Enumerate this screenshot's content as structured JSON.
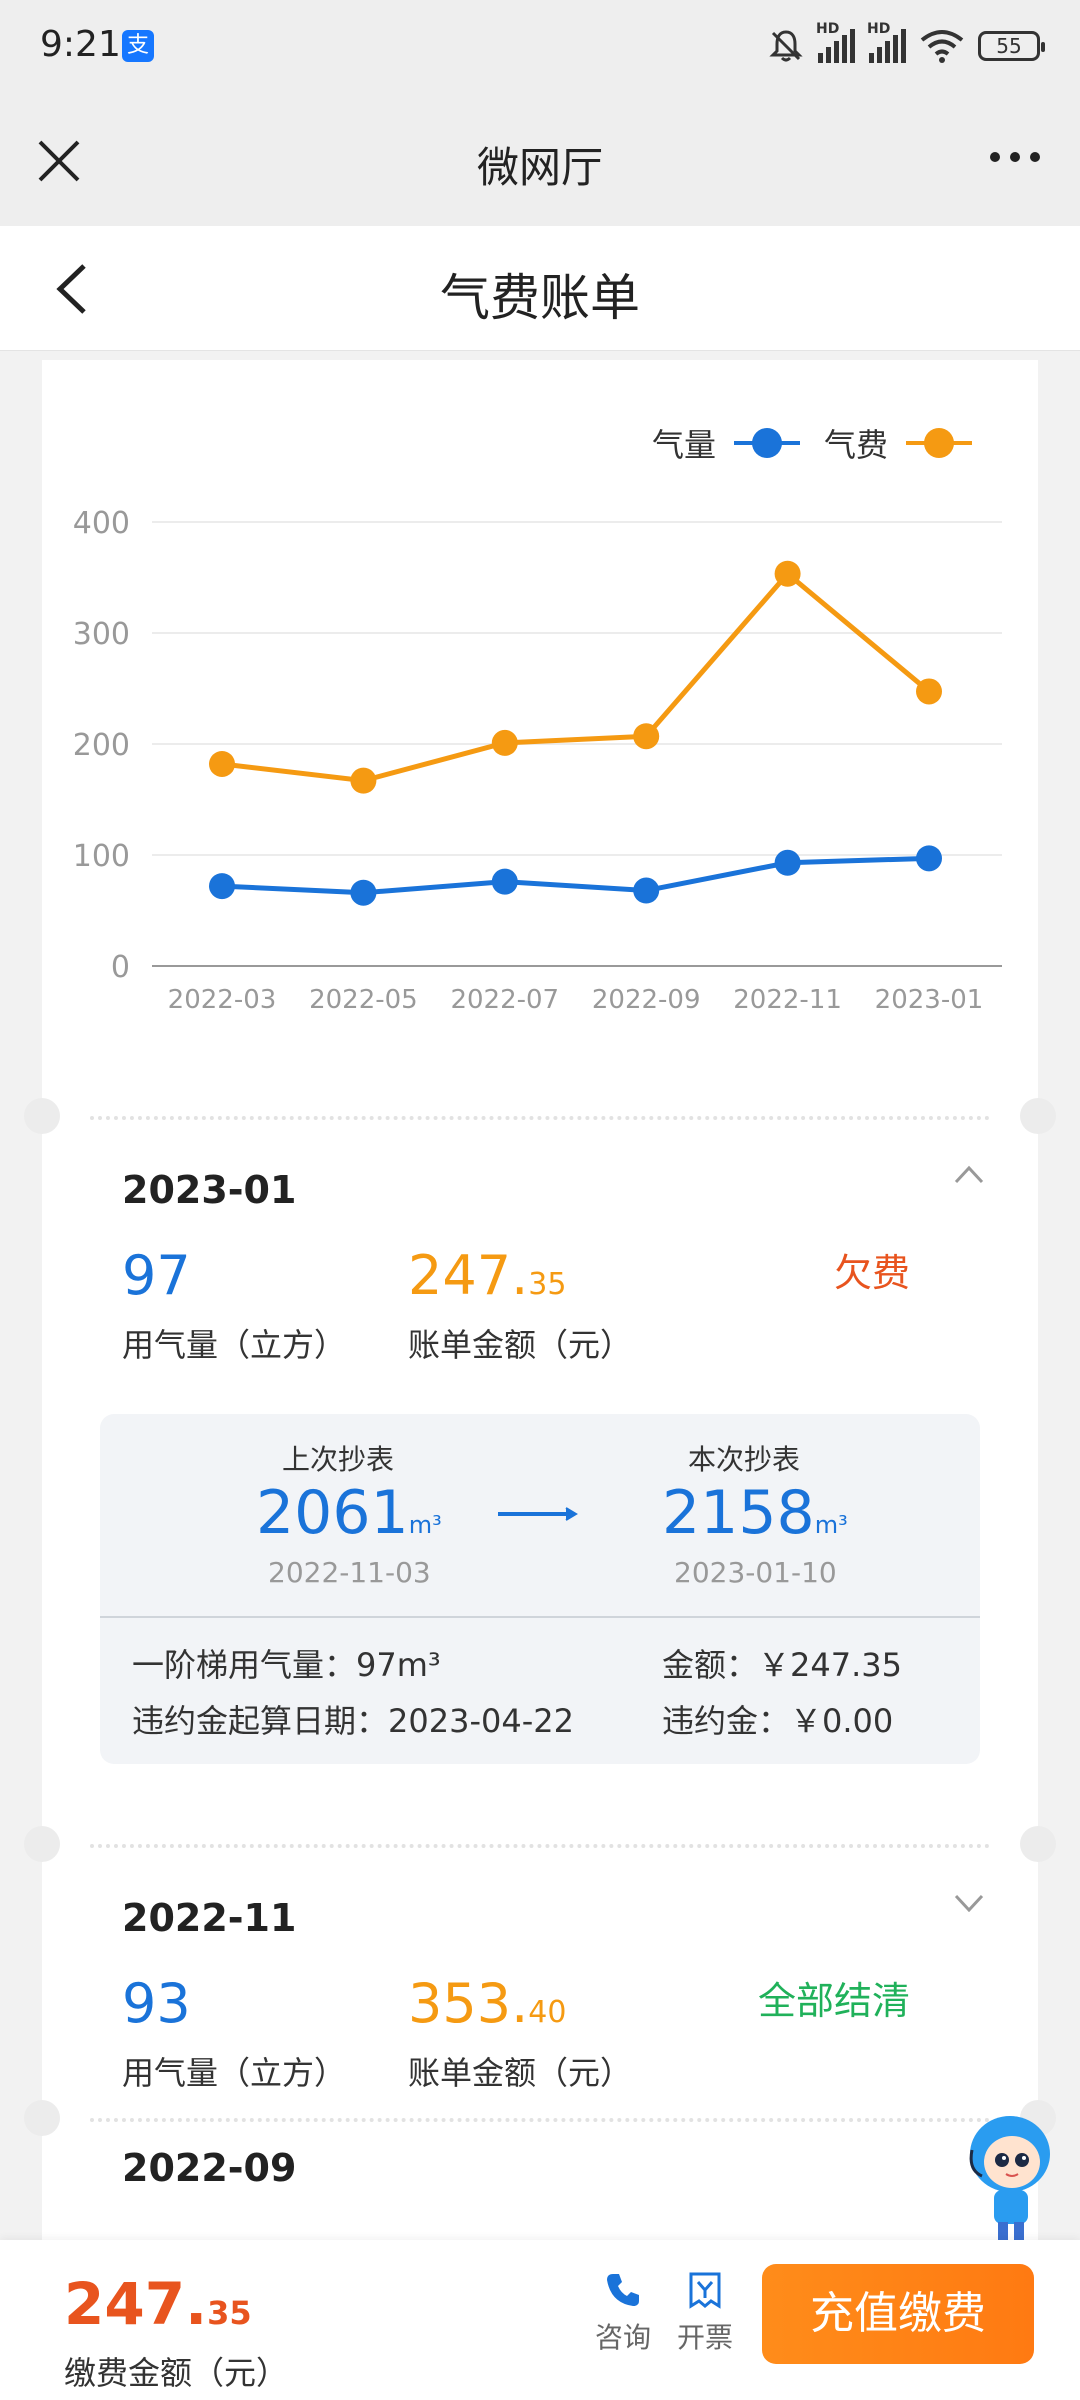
{
  "status_bar": {
    "time": "9:21",
    "battery": "55",
    "alipay_glyph": "支",
    "network_tag": "HD"
  },
  "app_bar": {
    "title": "微网厅"
  },
  "page": {
    "title": "气费账单"
  },
  "chart_data": {
    "type": "line",
    "x": [
      "2022-03",
      "2022-05",
      "2022-07",
      "2022-09",
      "2022-11",
      "2023-01"
    ],
    "series": [
      {
        "name": "气量",
        "color": "#1a73d9",
        "values": [
          72,
          66,
          76,
          68,
          93,
          97
        ]
      },
      {
        "name": "气费",
        "color": "#f59a12",
        "values": [
          182,
          167,
          201,
          207,
          353.4,
          247.35
        ]
      }
    ],
    "y_ticks": [
      0,
      100,
      200,
      300,
      400
    ],
    "ylim": [
      0,
      400
    ],
    "grid": true,
    "legend": "top-right"
  },
  "bills": [
    {
      "month": "2023-01",
      "usage": "97",
      "usage_label": "用气量（立方）",
      "amount_int": "247.",
      "amount_dec": "35",
      "amount_label": "账单金额（元）",
      "status": "欠费",
      "detail": {
        "prev_label": "上次抄表",
        "prev_reading": "2061",
        "prev_date": "2022-11-03",
        "curr_label": "本次抄表",
        "curr_reading": "2158",
        "curr_date": "2023-01-10",
        "unit": "m³",
        "tier_usage": "一阶梯用气量：97m³",
        "penalty_start": "违约金起算日期：2023-04-22",
        "amount": "金额：￥247.35",
        "penalty": "违约金：￥0.00"
      }
    },
    {
      "month": "2022-11",
      "usage": "93",
      "usage_label": "用气量（立方）",
      "amount_int": "353.",
      "amount_dec": "40",
      "amount_label": "账单金额（元）",
      "status": "全部结清"
    },
    {
      "month": "2022-09"
    }
  ],
  "footer": {
    "amount_int": "247.",
    "amount_dec": "35",
    "amount_label": "缴费金额（元）",
    "consult_label": "咨询",
    "invoice_label": "开票",
    "recharge_label": "充值缴费"
  }
}
